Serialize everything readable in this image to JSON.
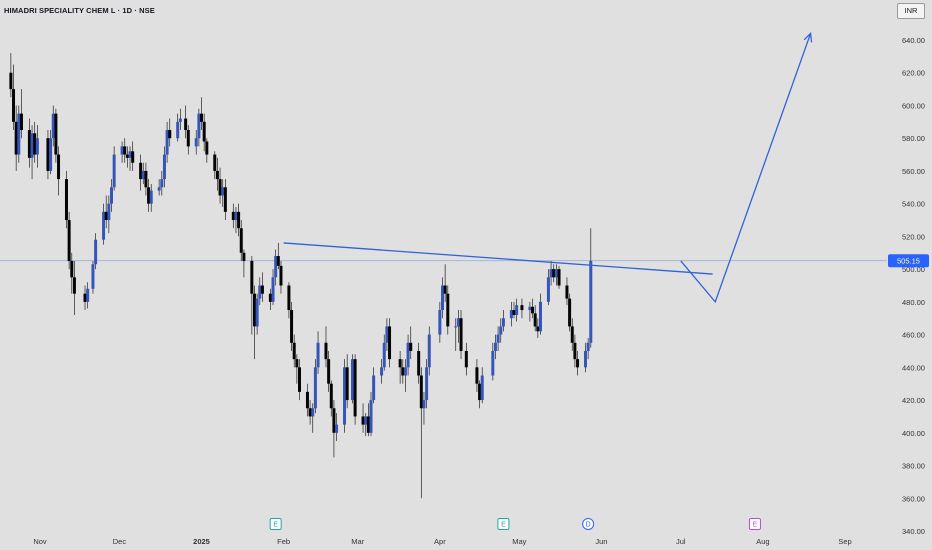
{
  "header": {
    "title": "HIMADRI SPECIALITY CHEM L · 1D · NSE",
    "currency": "INR"
  },
  "colors": {
    "up": "#3556b8",
    "down": "#050505",
    "drawing": "#2f63d8",
    "price_line": "#9ab0d8",
    "price_label_bg": "#2962ff",
    "earnings": "#26a69a",
    "dividend": "#2962ff",
    "future_earnings": "#c04bd8"
  },
  "events": [
    {
      "kind": "earnings",
      "label": "E",
      "date": "2025-01-29"
    },
    {
      "kind": "earnings",
      "label": "E",
      "date": "2025-04-25"
    },
    {
      "kind": "dividend",
      "label": "D",
      "date": "2025-05-27"
    },
    {
      "kind": "earnings",
      "label": "E",
      "date": "2025-07-29"
    }
  ],
  "chart_data": {
    "type": "candlestick",
    "symbol": "HIMADRI SPECIALITY CHEM L",
    "interval": "1D",
    "exchange": "NSE",
    "currency": "INR",
    "ylim": [
      340,
      650
    ],
    "xlim": [
      "2024-10-21",
      "2025-09-10"
    ],
    "y_ticks": [
      340,
      360,
      380,
      400,
      420,
      440,
      460,
      480,
      500,
      520,
      540,
      560,
      580,
      600,
      620,
      640
    ],
    "y_tick_labels": [
      "340.00",
      "360.00",
      "380.00",
      "400.00",
      "420.00",
      "440.00",
      "460.00",
      "480.00",
      "500.00",
      "520.00",
      "540.00",
      "560.00",
      "580.00",
      "600.00",
      "620.00",
      "640.00"
    ],
    "x_ticks": [
      {
        "label": "Nov",
        "date": "2024-11-01"
      },
      {
        "label": "Dec",
        "date": "2024-12-01"
      },
      {
        "label": "2025",
        "date": "2025-01-01",
        "bold": true
      },
      {
        "label": "Feb",
        "date": "2025-02-01"
      },
      {
        "label": "Mar",
        "date": "2025-03-01"
      },
      {
        "label": "Apr",
        "date": "2025-04-01"
      },
      {
        "label": "May",
        "date": "2025-05-01"
      },
      {
        "label": "Jun",
        "date": "2025-06-01"
      },
      {
        "label": "Jul",
        "date": "2025-07-01"
      },
      {
        "label": "Aug",
        "date": "2025-08-01"
      },
      {
        "label": "Sep",
        "date": "2025-09-01"
      }
    ],
    "last_price": 505.15,
    "last_price_label": "505.15",
    "grid": false,
    "candles": [
      [
        "2024-10-21",
        620,
        632,
        605,
        610
      ],
      [
        "2024-10-22",
        610,
        625,
        585,
        590
      ],
      [
        "2024-10-23",
        590,
        600,
        560,
        570
      ],
      [
        "2024-10-24",
        570,
        600,
        565,
        595
      ],
      [
        "2024-10-25",
        595,
        610,
        580,
        585
      ],
      [
        "2024-10-28",
        585,
        592,
        562,
        568
      ],
      [
        "2024-10-29",
        568,
        588,
        555,
        583
      ],
      [
        "2024-10-30",
        583,
        590,
        565,
        570
      ],
      [
        "2024-10-31",
        570,
        588,
        562,
        580
      ],
      [
        "2024-11-04",
        580,
        585,
        555,
        560
      ],
      [
        "2024-11-05",
        560,
        585,
        558,
        580
      ],
      [
        "2024-11-06",
        580,
        600,
        575,
        595
      ],
      [
        "2024-11-07",
        595,
        598,
        565,
        570
      ],
      [
        "2024-11-08",
        570,
        575,
        545,
        555
      ],
      [
        "2024-11-11",
        555,
        560,
        525,
        530
      ],
      [
        "2024-11-12",
        530,
        535,
        500,
        505
      ],
      [
        "2024-11-13",
        505,
        510,
        485,
        495
      ],
      [
        "2024-11-14",
        495,
        505,
        472,
        485
      ],
      [
        "2024-11-18",
        485,
        490,
        475,
        480
      ],
      [
        "2024-11-19",
        480,
        492,
        476,
        488
      ],
      [
        "2024-11-21",
        488,
        505,
        485,
        503
      ],
      [
        "2024-11-22",
        503,
        522,
        500,
        518
      ],
      [
        "2024-11-25",
        518,
        540,
        515,
        535
      ],
      [
        "2024-11-26",
        535,
        545,
        525,
        530
      ],
      [
        "2024-11-27",
        530,
        545,
        522,
        540
      ],
      [
        "2024-11-28",
        540,
        555,
        535,
        550
      ],
      [
        "2024-11-29",
        550,
        575,
        548,
        570
      ],
      [
        "2024-12-02",
        570,
        578,
        565,
        575
      ],
      [
        "2024-12-03",
        575,
        580,
        565,
        570
      ],
      [
        "2024-12-04",
        570,
        575,
        562,
        568
      ],
      [
        "2024-12-05",
        568,
        575,
        560,
        572
      ],
      [
        "2024-12-06",
        572,
        578,
        560,
        565
      ],
      [
        "2024-12-09",
        565,
        570,
        548,
        555
      ],
      [
        "2024-12-10",
        555,
        565,
        552,
        560
      ],
      [
        "2024-12-11",
        560,
        565,
        545,
        550
      ],
      [
        "2024-12-12",
        550,
        555,
        535,
        540
      ],
      [
        "2024-12-13",
        540,
        552,
        535,
        548
      ],
      [
        "2024-12-16",
        548,
        555,
        545,
        550
      ],
      [
        "2024-12-17",
        550,
        560,
        545,
        555
      ],
      [
        "2024-12-18",
        555,
        575,
        550,
        570
      ],
      [
        "2024-12-19",
        570,
        590,
        565,
        585
      ],
      [
        "2024-12-20",
        585,
        592,
        575,
        580
      ],
      [
        "2024-12-23",
        580,
        595,
        578,
        590
      ],
      [
        "2024-12-24",
        590,
        598,
        585,
        592
      ],
      [
        "2024-12-26",
        592,
        600,
        580,
        585
      ],
      [
        "2024-12-27",
        585,
        588,
        570,
        575
      ],
      [
        "2024-12-30",
        575,
        585,
        570,
        580
      ],
      [
        "2024-12-31",
        580,
        598,
        575,
        595
      ],
      [
        "2025-01-01",
        595,
        605,
        585,
        590
      ],
      [
        "2025-01-02",
        590,
        595,
        572,
        578
      ],
      [
        "2025-01-03",
        578,
        580,
        565,
        570
      ],
      [
        "2025-01-06",
        570,
        572,
        555,
        560
      ],
      [
        "2025-01-07",
        560,
        568,
        548,
        555
      ],
      [
        "2025-01-08",
        555,
        562,
        540,
        545
      ],
      [
        "2025-01-09",
        545,
        555,
        538,
        550
      ],
      [
        "2025-01-10",
        550,
        555,
        530,
        535
      ],
      [
        "2025-01-13",
        535,
        540,
        525,
        530
      ],
      [
        "2025-01-14",
        530,
        538,
        522,
        535
      ],
      [
        "2025-01-15",
        535,
        540,
        520,
        525
      ],
      [
        "2025-01-16",
        525,
        530,
        505,
        510
      ],
      [
        "2025-01-17",
        510,
        512,
        495,
        505
      ],
      [
        "2025-01-20",
        505,
        508,
        460,
        485
      ],
      [
        "2025-01-21",
        485,
        490,
        445,
        465
      ],
      [
        "2025-01-22",
        465,
        485,
        460,
        482
      ],
      [
        "2025-01-23",
        482,
        495,
        478,
        490
      ],
      [
        "2025-01-24",
        490,
        498,
        480,
        485
      ],
      [
        "2025-01-27",
        485,
        488,
        475,
        480
      ],
      [
        "2025-01-28",
        480,
        500,
        478,
        495
      ],
      [
        "2025-01-29",
        495,
        512,
        490,
        508
      ],
      [
        "2025-01-30",
        508,
        516,
        500,
        502
      ],
      [
        "2025-01-31",
        502,
        505,
        485,
        490
      ],
      [
        "2025-02-03",
        490,
        492,
        470,
        475
      ],
      [
        "2025-02-04",
        475,
        480,
        450,
        455
      ],
      [
        "2025-02-05",
        455,
        460,
        440,
        445
      ],
      [
        "2025-02-06",
        445,
        448,
        430,
        440
      ],
      [
        "2025-02-07",
        440,
        445,
        420,
        425
      ],
      [
        "2025-02-10",
        425,
        430,
        410,
        415
      ],
      [
        "2025-02-11",
        415,
        420,
        405,
        410
      ],
      [
        "2025-02-12",
        410,
        418,
        400,
        415
      ],
      [
        "2025-02-13",
        415,
        445,
        412,
        440
      ],
      [
        "2025-02-14",
        440,
        462,
        436,
        455
      ],
      [
        "2025-02-17",
        455,
        465,
        440,
        445
      ],
      [
        "2025-02-18",
        445,
        450,
        425,
        430
      ],
      [
        "2025-02-19",
        430,
        432,
        410,
        415
      ],
      [
        "2025-02-20",
        415,
        420,
        385,
        400
      ],
      [
        "2025-02-21",
        400,
        412,
        395,
        405
      ],
      [
        "2025-02-24",
        405,
        445,
        400,
        440
      ],
      [
        "2025-02-25",
        440,
        448,
        415,
        420
      ],
      [
        "2025-02-27",
        420,
        448,
        418,
        445
      ],
      [
        "2025-02-28",
        445,
        448,
        405,
        410
      ],
      [
        "2025-03-03",
        410,
        418,
        400,
        405
      ],
      [
        "2025-03-04",
        405,
        412,
        398,
        410
      ],
      [
        "2025-03-05",
        410,
        418,
        398,
        400
      ],
      [
        "2025-03-06",
        400,
        425,
        398,
        420
      ],
      [
        "2025-03-07",
        420,
        440,
        418,
        435
      ],
      [
        "2025-03-10",
        435,
        445,
        430,
        440
      ],
      [
        "2025-03-11",
        440,
        460,
        438,
        455
      ],
      [
        "2025-03-12",
        455,
        470,
        450,
        465
      ],
      [
        "2025-03-13",
        465,
        470,
        440,
        445
      ],
      [
        "2025-03-17",
        445,
        450,
        430,
        440
      ],
      [
        "2025-03-18",
        440,
        445,
        430,
        435
      ],
      [
        "2025-03-19",
        435,
        445,
        425,
        440
      ],
      [
        "2025-03-20",
        440,
        460,
        435,
        455
      ],
      [
        "2025-03-21",
        455,
        465,
        445,
        450
      ],
      [
        "2025-03-24",
        450,
        455,
        430,
        435
      ],
      [
        "2025-03-25",
        435,
        440,
        360,
        415
      ],
      [
        "2025-03-26",
        415,
        425,
        405,
        420
      ],
      [
        "2025-03-27",
        420,
        445,
        415,
        440
      ],
      [
        "2025-03-28",
        440,
        465,
        435,
        460
      ],
      [
        "2025-04-01",
        460,
        480,
        455,
        475
      ],
      [
        "2025-04-02",
        475,
        495,
        470,
        490
      ],
      [
        "2025-04-03",
        490,
        503,
        480,
        485
      ],
      [
        "2025-04-04",
        485,
        490,
        460,
        465
      ],
      [
        "2025-04-07",
        465,
        470,
        450,
        465
      ],
      [
        "2025-04-08",
        465,
        475,
        455,
        470
      ],
      [
        "2025-04-09",
        470,
        475,
        445,
        450
      ],
      [
        "2025-04-11",
        450,
        455,
        435,
        440
      ],
      [
        "2025-04-15",
        440,
        445,
        425,
        430
      ],
      [
        "2025-04-16",
        430,
        432,
        415,
        420
      ],
      [
        "2025-04-17",
        420,
        440,
        418,
        435
      ],
      [
        "2025-04-21",
        435,
        455,
        432,
        450
      ],
      [
        "2025-04-22",
        450,
        460,
        445,
        455
      ],
      [
        "2025-04-23",
        455,
        465,
        450,
        460
      ],
      [
        "2025-04-24",
        460,
        470,
        455,
        465
      ],
      [
        "2025-04-25",
        465,
        475,
        462,
        470
      ],
      [
        "2025-04-28",
        470,
        480,
        465,
        475
      ],
      [
        "2025-04-29",
        475,
        480,
        470,
        472
      ],
      [
        "2025-04-30",
        472,
        482,
        468,
        478
      ],
      [
        "2025-05-02",
        478,
        482,
        470,
        475
      ],
      [
        "2025-05-05",
        475,
        480,
        468,
        477
      ],
      [
        "2025-05-06",
        477,
        482,
        470,
        473
      ],
      [
        "2025-05-07",
        473,
        478,
        462,
        465
      ],
      [
        "2025-05-08",
        465,
        470,
        458,
        462
      ],
      [
        "2025-05-09",
        462,
        485,
        460,
        480
      ],
      [
        "2025-05-12",
        480,
        500,
        478,
        495
      ],
      [
        "2025-05-13",
        495,
        505,
        490,
        500
      ],
      [
        "2025-05-14",
        500,
        503,
        492,
        495
      ],
      [
        "2025-05-15",
        495,
        503,
        490,
        500
      ],
      [
        "2025-05-16",
        500,
        502,
        488,
        490
      ],
      [
        "2025-05-19",
        490,
        495,
        478,
        482
      ],
      [
        "2025-05-20",
        482,
        485,
        462,
        465
      ],
      [
        "2025-05-21",
        465,
        470,
        450,
        455
      ],
      [
        "2025-05-22",
        455,
        460,
        440,
        445
      ],
      [
        "2025-05-23",
        445,
        450,
        435,
        440
      ],
      [
        "2025-05-26",
        440,
        455,
        437,
        450
      ],
      [
        "2025-05-27",
        450,
        458,
        445,
        455
      ],
      [
        "2025-05-28",
        455,
        525,
        452,
        505
      ]
    ],
    "annotations": {
      "resistance_line": {
        "from": [
          "2025-02-01",
          516
        ],
        "to": [
          "2025-07-13",
          497
        ]
      },
      "projection_path": [
        [
          "2025-07-01",
          505
        ],
        [
          "2025-07-14",
          480
        ],
        [
          "2025-08-19",
          644
        ]
      ]
    }
  }
}
